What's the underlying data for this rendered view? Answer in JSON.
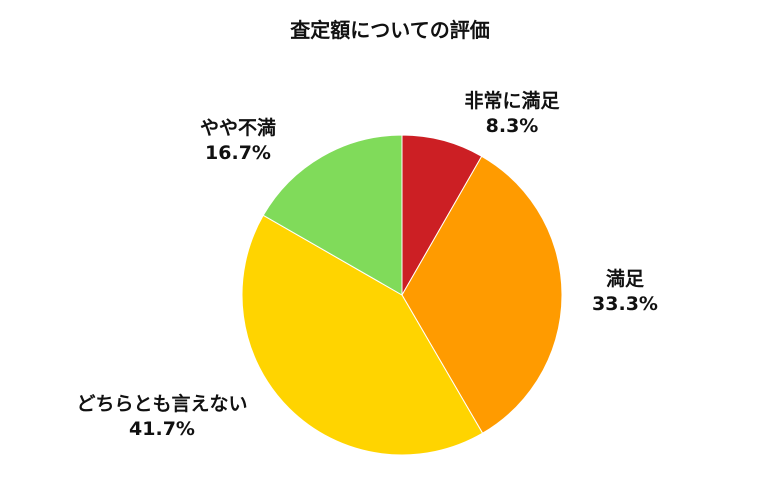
{
  "chart_data": {
    "type": "pie",
    "title": "査定額についての評価",
    "slices": [
      {
        "label": "非常に満足",
        "value": 8.3,
        "value_label": "8.3%",
        "color": "#cc1f24"
      },
      {
        "label": "満足",
        "value": 33.3,
        "value_label": "33.3%",
        "color": "#ff9b00"
      },
      {
        "label": "どちらとも言えない",
        "value": 41.7,
        "value_label": "41.7%",
        "color": "#ffd400"
      },
      {
        "label": "やや不満",
        "value": 16.7,
        "value_label": "16.7%",
        "color": "#80db5a"
      }
    ],
    "start_angle": "12 o'clock",
    "direction": "clockwise",
    "legend": "none (labels beside slices)"
  }
}
